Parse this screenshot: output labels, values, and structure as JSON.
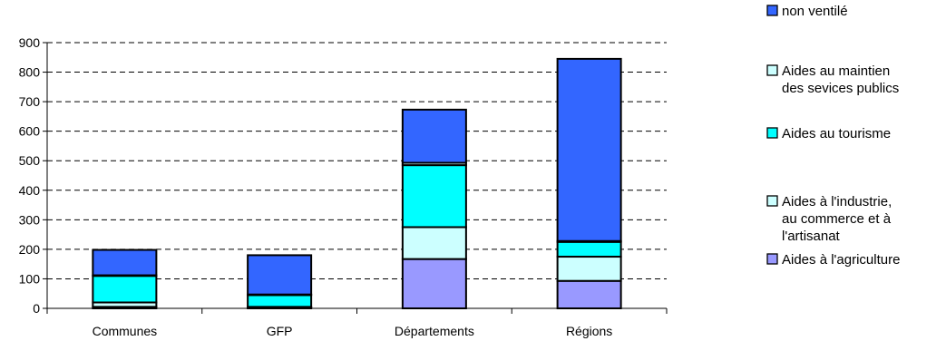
{
  "chart_data": {
    "type": "bar",
    "stacked": true,
    "categories": [
      "Communes",
      "GFP",
      "Départements",
      "Régions"
    ],
    "ylim": [
      0,
      900
    ],
    "yticks": [
      0,
      100,
      200,
      300,
      400,
      500,
      600,
      700,
      800,
      900
    ],
    "grid": true,
    "legend_position": "right",
    "series": [
      {
        "name": "Aides à l'agriculture",
        "color": "#9999ff",
        "values": [
          5,
          3,
          167,
          93
        ]
      },
      {
        "name": "Aides à l'industrie, au commerce et à l'artisanat",
        "color": "#ccffff",
        "values": [
          15,
          2,
          108,
          82
        ]
      },
      {
        "name": "Aides au tourisme",
        "color": "#00ffff",
        "values": [
          90,
          40,
          210,
          50
        ]
      },
      {
        "name": "Aides au maintien des sevices publics",
        "color": "#ccffff",
        "values": [
          2,
          2,
          8,
          3
        ]
      },
      {
        "name": "non ventilé",
        "color": "#3366ff",
        "values": [
          86,
          133,
          180,
          617
        ]
      }
    ],
    "legend": [
      {
        "series": 4,
        "lines": [
          "non ventilé"
        ]
      },
      {
        "series": 3,
        "lines": [
          "Aides au maintien",
          "des sevices publics"
        ]
      },
      {
        "series": 2,
        "lines": [
          "Aides au tourisme"
        ]
      },
      {
        "series": 1,
        "lines": [
          "Aides à l'industrie,",
          "au commerce et à",
          "l'artisanat"
        ]
      },
      {
        "series": 0,
        "lines": [
          "Aides à l'agriculture"
        ]
      }
    ]
  }
}
